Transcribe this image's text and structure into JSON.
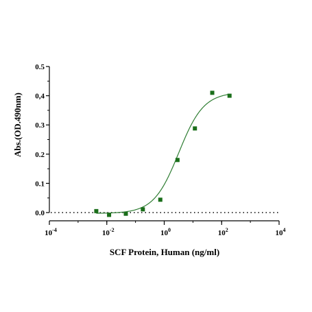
{
  "chart_data": {
    "type": "scatter",
    "xlabel": "SCF Protein, Human  (ng/ml)",
    "ylabel": "Abs.(OD.490nm)",
    "x_scale": "log",
    "xlim": [
      0.0001,
      10000
    ],
    "ylim": [
      0,
      0.5
    ],
    "x_ticks": [
      {
        "value": 0.0001,
        "base": "10",
        "exp": "-4"
      },
      {
        "value": 0.01,
        "base": "10",
        "exp": "-2"
      },
      {
        "value": 1,
        "base": "10",
        "exp": "0"
      },
      {
        "value": 100,
        "base": "10",
        "exp": "2"
      },
      {
        "value": 10000,
        "base": "10",
        "exp": "4"
      }
    ],
    "y_ticks": [
      {
        "value": 0,
        "label": "0.0"
      },
      {
        "value": 0.1,
        "label": "0.1"
      },
      {
        "value": 0.2,
        "label": "0.2"
      },
      {
        "value": 0.3,
        "label": "0.3"
      },
      {
        "value": 0.4,
        "label": "0,4"
      },
      {
        "value": 0.5,
        "label": "0.5"
      }
    ],
    "points": [
      {
        "x": 0.0043,
        "y": 0.005
      },
      {
        "x": 0.012,
        "y": -0.008
      },
      {
        "x": 0.046,
        "y": -0.004
      },
      {
        "x": 0.18,
        "y": 0.011
      },
      {
        "x": 0.73,
        "y": 0.044
      },
      {
        "x": 2.9,
        "y": 0.18
      },
      {
        "x": 11.7,
        "y": 0.288
      },
      {
        "x": 47,
        "y": 0.41
      },
      {
        "x": 188,
        "y": 0.4
      }
    ],
    "fit": {
      "model": "4PL",
      "bottom": -0.003,
      "top": 0.412,
      "ec50": 3.2,
      "hill": 1.0
    },
    "baseline": {
      "y": 0,
      "style": "dotted"
    },
    "marker_color": "#1a6e1a",
    "line_color": "#2e7d32",
    "grid": false,
    "legend": "none"
  }
}
